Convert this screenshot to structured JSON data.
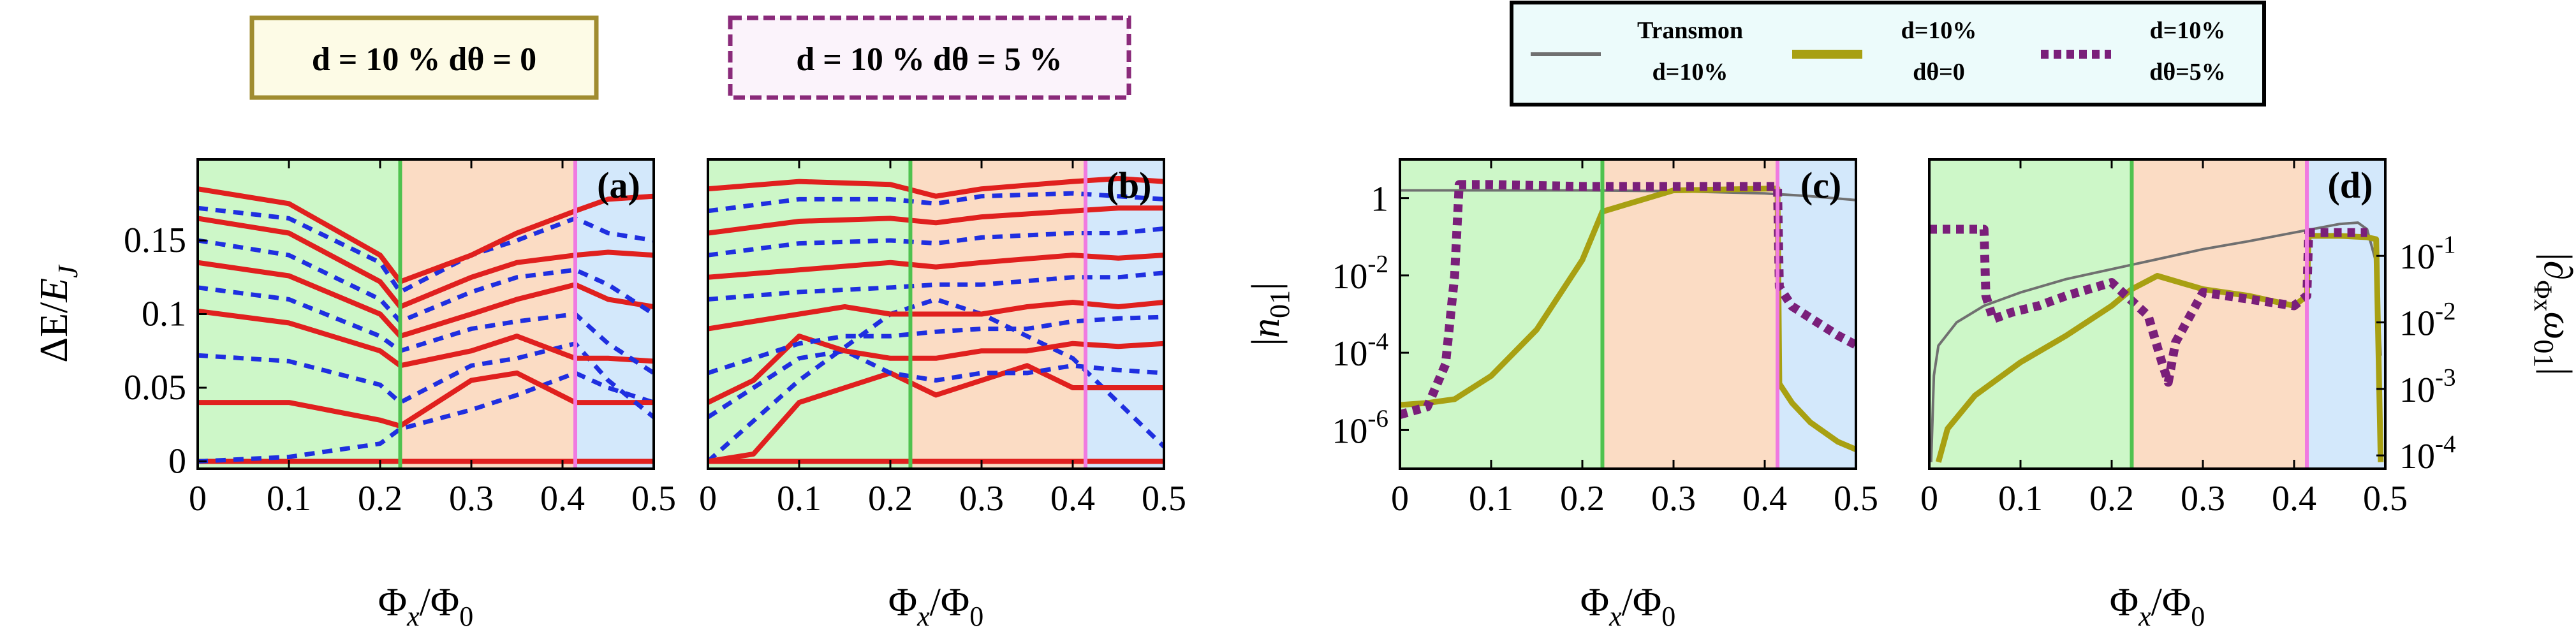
{
  "colors": {
    "red": "#e0201e",
    "blue": "#1f2fe0",
    "olive": "#a8a012",
    "purple": "#7a1f7a",
    "gray": "#707070",
    "region_green": "#cdf7c8",
    "region_orange": "#fbdcc4",
    "region_blue": "#d3e8fb",
    "green_line": "#4fc24f",
    "pink_line": "#f07ae0",
    "legend_bg": "#ecfbfb",
    "box_a_border": "#a08c30",
    "box_b_border": "#8a2a7a"
  },
  "boxes": [
    {
      "text": "d = 10 %    dθ = 0",
      "style": "solid"
    },
    {
      "text": "d = 10 %    dθ = 5 %",
      "style": "dashed"
    }
  ],
  "legend": {
    "entries": [
      {
        "line1": "Transmon",
        "line2": "d=10%",
        "style": "gray-solid"
      },
      {
        "line1": "d=10%",
        "line2": "dθ=0",
        "style": "olive-solid"
      },
      {
        "line1": "d=10%",
        "line2": "dθ=5%",
        "style": "purple-dotted"
      }
    ]
  },
  "chart_data": [
    {
      "panel": "(a)",
      "type": "line",
      "xlabel": "Φx/Φ0",
      "ylabel": "ΔE/EJ",
      "xlim": [
        0,
        0.5
      ],
      "ylim": [
        -0.005,
        0.205
      ],
      "xticks": [
        "0",
        "0.1",
        "0.2",
        "0.3",
        "0.4",
        "0.5"
      ],
      "yticks": [
        "0",
        "0.05",
        "0.1",
        "0.15"
      ],
      "regions": [
        {
          "from": 0,
          "to": 0.222,
          "color": "green"
        },
        {
          "from": 0.222,
          "to": 0.414,
          "color": "orange"
        },
        {
          "from": 0.414,
          "to": 0.5,
          "color": "blue"
        }
      ],
      "vlines": [
        0.222,
        0.414
      ],
      "series": [
        {
          "name": "red 0",
          "color": "red",
          "dash": false,
          "x": [
            0,
            0.5
          ],
          "y": [
            0.0,
            0.0
          ]
        },
        {
          "name": "blue 1",
          "color": "blue",
          "dash": true,
          "x": [
            0,
            0.1,
            0.2,
            0.222,
            0.3,
            0.35,
            0.414,
            0.45,
            0.5
          ],
          "y": [
            0.0,
            0.003,
            0.012,
            0.022,
            0.035,
            0.045,
            0.06,
            0.05,
            0.04
          ]
        },
        {
          "name": "red 1",
          "color": "red",
          "dash": false,
          "x": [
            0,
            0.1,
            0.2,
            0.222,
            0.3,
            0.35,
            0.414,
            0.45,
            0.5
          ],
          "y": [
            0.04,
            0.04,
            0.028,
            0.024,
            0.055,
            0.06,
            0.04,
            0.04,
            0.04
          ]
        },
        {
          "name": "blue 2",
          "color": "blue",
          "dash": true,
          "x": [
            0,
            0.1,
            0.2,
            0.222,
            0.3,
            0.35,
            0.414,
            0.45,
            0.5
          ],
          "y": [
            0.072,
            0.068,
            0.052,
            0.04,
            0.065,
            0.07,
            0.08,
            0.055,
            0.03
          ]
        },
        {
          "name": "red 2",
          "color": "red",
          "dash": false,
          "x": [
            0,
            0.1,
            0.2,
            0.222,
            0.3,
            0.35,
            0.414,
            0.45,
            0.5
          ],
          "y": [
            0.102,
            0.094,
            0.075,
            0.065,
            0.075,
            0.085,
            0.07,
            0.07,
            0.068
          ]
        },
        {
          "name": "blue 3",
          "color": "blue",
          "dash": true,
          "x": [
            0,
            0.1,
            0.2,
            0.222,
            0.3,
            0.35,
            0.414,
            0.45,
            0.5
          ],
          "y": [
            0.118,
            0.11,
            0.085,
            0.075,
            0.09,
            0.095,
            0.1,
            0.08,
            0.06
          ]
        },
        {
          "name": "red 3",
          "color": "red",
          "dash": false,
          "x": [
            0,
            0.1,
            0.2,
            0.222,
            0.3,
            0.35,
            0.414,
            0.45,
            0.5
          ],
          "y": [
            0.135,
            0.126,
            0.1,
            0.085,
            0.1,
            0.11,
            0.12,
            0.11,
            0.105
          ]
        },
        {
          "name": "blue 4",
          "color": "blue",
          "dash": true,
          "x": [
            0,
            0.1,
            0.2,
            0.222,
            0.3,
            0.35,
            0.414,
            0.45,
            0.5
          ],
          "y": [
            0.15,
            0.14,
            0.11,
            0.095,
            0.115,
            0.125,
            0.13,
            0.12,
            0.1
          ]
        },
        {
          "name": "red 4",
          "color": "red",
          "dash": false,
          "x": [
            0,
            0.1,
            0.2,
            0.222,
            0.3,
            0.35,
            0.414,
            0.45,
            0.5
          ],
          "y": [
            0.165,
            0.155,
            0.122,
            0.105,
            0.125,
            0.135,
            0.14,
            0.142,
            0.14
          ]
        },
        {
          "name": "blue 5",
          "color": "blue",
          "dash": true,
          "x": [
            0,
            0.1,
            0.2,
            0.222,
            0.3,
            0.35,
            0.414,
            0.45,
            0.5
          ],
          "y": [
            0.172,
            0.165,
            0.135,
            0.115,
            0.14,
            0.15,
            0.165,
            0.155,
            0.15
          ]
        },
        {
          "name": "red 5",
          "color": "red",
          "dash": false,
          "x": [
            0,
            0.1,
            0.2,
            0.222,
            0.3,
            0.35,
            0.414,
            0.45,
            0.5
          ],
          "y": [
            0.185,
            0.175,
            0.14,
            0.122,
            0.14,
            0.155,
            0.17,
            0.178,
            0.18
          ]
        }
      ]
    },
    {
      "panel": "(b)",
      "type": "line",
      "xlabel": "Φx/Φ0",
      "ylabel": "",
      "xlim": [
        0,
        0.5
      ],
      "ylim": [
        -0.005,
        0.205
      ],
      "xticks": [
        "0",
        "0.1",
        "0.2",
        "0.3",
        "0.4",
        "0.5"
      ],
      "yticks": [],
      "regions": [
        {
          "from": 0,
          "to": 0.222,
          "color": "green"
        },
        {
          "from": 0.222,
          "to": 0.414,
          "color": "orange"
        },
        {
          "from": 0.414,
          "to": 0.5,
          "color": "blue"
        }
      ],
      "vlines": [
        0.222,
        0.414
      ],
      "series": [
        {
          "name": "red 0",
          "color": "red",
          "dash": false,
          "x": [
            0,
            0.5
          ],
          "y": [
            0.0,
            0.0
          ]
        },
        {
          "name": "blue 1",
          "color": "blue",
          "dash": true,
          "x": [
            0,
            0.1,
            0.2,
            0.25,
            0.3,
            0.4,
            0.45,
            0.5
          ],
          "y": [
            0.0,
            0.055,
            0.1,
            0.11,
            0.1,
            0.07,
            0.04,
            0.01
          ]
        },
        {
          "name": "red 1",
          "color": "red",
          "dash": false,
          "x": [
            0,
            0.05,
            0.1,
            0.15,
            0.2,
            0.25,
            0.3,
            0.35,
            0.4,
            0.45,
            0.5
          ],
          "y": [
            0.0,
            0.005,
            0.04,
            0.05,
            0.06,
            0.045,
            0.055,
            0.065,
            0.05,
            0.05,
            0.05
          ]
        },
        {
          "name": "blue 2",
          "color": "blue",
          "dash": true,
          "x": [
            0,
            0.05,
            0.1,
            0.15,
            0.2,
            0.25,
            0.3,
            0.35,
            0.4,
            0.45,
            0.5
          ],
          "y": [
            0.03,
            0.05,
            0.07,
            0.075,
            0.06,
            0.055,
            0.06,
            0.06,
            0.065,
            0.062,
            0.06
          ]
        },
        {
          "name": "red 2",
          "color": "red",
          "dash": false,
          "x": [
            0,
            0.05,
            0.1,
            0.15,
            0.2,
            0.25,
            0.3,
            0.35,
            0.4,
            0.45,
            0.5
          ],
          "y": [
            0.04,
            0.055,
            0.085,
            0.075,
            0.07,
            0.07,
            0.075,
            0.075,
            0.08,
            0.078,
            0.08
          ]
        },
        {
          "name": "blue 3",
          "color": "blue",
          "dash": true,
          "x": [
            0,
            0.05,
            0.1,
            0.15,
            0.2,
            0.25,
            0.3,
            0.35,
            0.4,
            0.45,
            0.5
          ],
          "y": [
            0.06,
            0.07,
            0.08,
            0.085,
            0.085,
            0.088,
            0.09,
            0.09,
            0.095,
            0.097,
            0.098
          ]
        },
        {
          "name": "red 3",
          "color": "red",
          "dash": false,
          "x": [
            0,
            0.05,
            0.1,
            0.15,
            0.2,
            0.25,
            0.3,
            0.35,
            0.4,
            0.45,
            0.5
          ],
          "y": [
            0.09,
            0.095,
            0.1,
            0.105,
            0.1,
            0.1,
            0.1,
            0.105,
            0.108,
            0.105,
            0.108
          ]
        },
        {
          "name": "blue 4",
          "color": "blue",
          "dash": true,
          "x": [
            0,
            0.1,
            0.2,
            0.25,
            0.3,
            0.4,
            0.45,
            0.5
          ],
          "y": [
            0.11,
            0.115,
            0.118,
            0.12,
            0.12,
            0.125,
            0.125,
            0.128
          ]
        },
        {
          "name": "red 4",
          "color": "red",
          "dash": false,
          "x": [
            0,
            0.1,
            0.2,
            0.25,
            0.3,
            0.4,
            0.45,
            0.5
          ],
          "y": [
            0.125,
            0.13,
            0.135,
            0.132,
            0.135,
            0.14,
            0.138,
            0.14
          ]
        },
        {
          "name": "blue 5",
          "color": "blue",
          "dash": true,
          "x": [
            0,
            0.1,
            0.2,
            0.25,
            0.3,
            0.4,
            0.45,
            0.5
          ],
          "y": [
            0.14,
            0.148,
            0.15,
            0.148,
            0.152,
            0.155,
            0.155,
            0.158
          ]
        },
        {
          "name": "red 5",
          "color": "red",
          "dash": false,
          "x": [
            0,
            0.1,
            0.2,
            0.25,
            0.3,
            0.4,
            0.45,
            0.5
          ],
          "y": [
            0.155,
            0.163,
            0.165,
            0.162,
            0.166,
            0.17,
            0.172,
            0.172
          ]
        },
        {
          "name": "blue 6",
          "color": "blue",
          "dash": true,
          "x": [
            0,
            0.1,
            0.2,
            0.25,
            0.3,
            0.4,
            0.45,
            0.5
          ],
          "y": [
            0.17,
            0.178,
            0.178,
            0.175,
            0.18,
            0.182,
            0.18,
            0.178
          ]
        },
        {
          "name": "red 6",
          "color": "red",
          "dash": false,
          "x": [
            0,
            0.1,
            0.2,
            0.25,
            0.3,
            0.4,
            0.45,
            0.5
          ],
          "y": [
            0.185,
            0.19,
            0.188,
            0.18,
            0.185,
            0.19,
            0.192,
            0.19
          ]
        }
      ]
    },
    {
      "panel": "(c)",
      "type": "line",
      "scale": "log",
      "xlabel": "Φx/Φ0",
      "ylabel": "|n01|",
      "xlim": [
        0,
        0.5
      ],
      "ylim": [
        -7,
        1
      ],
      "xticks": [
        "0",
        "0.1",
        "0.2",
        "0.3",
        "0.4",
        "0.5"
      ],
      "yticks": [
        {
          "exp": 0,
          "label": "1"
        },
        {
          "exp": -2,
          "label": "10",
          "sup": "-2"
        },
        {
          "exp": -4,
          "label": "10",
          "sup": "-4"
        },
        {
          "exp": -6,
          "label": "10",
          "sup": "-6"
        }
      ],
      "regions": [
        {
          "from": 0,
          "to": 0.222,
          "color": "green"
        },
        {
          "from": 0.222,
          "to": 0.414,
          "color": "orange"
        },
        {
          "from": 0.414,
          "to": 0.5,
          "color": "blue"
        }
      ],
      "vlines": [
        0.222,
        0.414
      ],
      "series": [
        {
          "name": "Transmon",
          "color": "gray",
          "dash": false,
          "x": [
            0,
            0.1,
            0.2,
            0.3,
            0.4,
            0.45,
            0.5
          ],
          "y": [
            0.2,
            0.2,
            0.2,
            0.18,
            0.12,
            0.05,
            -0.05
          ]
        },
        {
          "name": "d=10% dθ=0",
          "color": "olive",
          "dash": false,
          "x": [
            0,
            0.03,
            0.06,
            0.1,
            0.15,
            0.2,
            0.222,
            0.3,
            0.414,
            0.416,
            0.43,
            0.45,
            0.48,
            0.5
          ],
          "y": [
            -5.35,
            -5.3,
            -5.2,
            -4.6,
            -3.4,
            -1.6,
            -0.35,
            0.2,
            0.25,
            -4.8,
            -5.3,
            -5.8,
            -6.3,
            -6.5
          ]
        },
        {
          "name": "d=10% dθ=5%",
          "color": "purple",
          "dash": true,
          "x": [
            0,
            0.03,
            0.05,
            0.06,
            0.065,
            0.1,
            0.2,
            0.3,
            0.414,
            0.416,
            0.43,
            0.45,
            0.48,
            0.5
          ],
          "y": [
            -5.6,
            -5.4,
            -4.3,
            -2.0,
            0.35,
            0.35,
            0.3,
            0.3,
            0.3,
            -2.3,
            -2.8,
            -3.1,
            -3.55,
            -3.8
          ]
        }
      ]
    },
    {
      "panel": "(d)",
      "type": "line",
      "scale": "log",
      "xlabel": "Φx/Φ0",
      "ylabel": "|∂Φx ω01|",
      "xlim": [
        0,
        0.5
      ],
      "ylim": [
        -4.2,
        0.45
      ],
      "xticks": [
        "0",
        "0.1",
        "0.2",
        "0.3",
        "0.4",
        "0.5"
      ],
      "yticks_right": [
        {
          "exp": -1,
          "label": "10",
          "sup": "-1"
        },
        {
          "exp": -2,
          "label": "10",
          "sup": "-2"
        },
        {
          "exp": -3,
          "label": "10",
          "sup": "-3"
        },
        {
          "exp": -4,
          "label": "10",
          "sup": "-4"
        }
      ],
      "regions": [
        {
          "from": 0,
          "to": 0.222,
          "color": "green"
        },
        {
          "from": 0.222,
          "to": 0.414,
          "color": "orange"
        },
        {
          "from": 0.414,
          "to": 0.5,
          "color": "blue"
        }
      ],
      "vlines": [
        0.222,
        0.414
      ],
      "series": [
        {
          "name": "Transmon",
          "color": "gray",
          "dash": false,
          "x": [
            0.002,
            0.005,
            0.01,
            0.03,
            0.06,
            0.1,
            0.15,
            0.2,
            0.25,
            0.3,
            0.35,
            0.4,
            0.45,
            0.47,
            0.48,
            0.49,
            0.495
          ],
          "y": [
            -4.1,
            -2.8,
            -2.35,
            -2.0,
            -1.75,
            -1.55,
            -1.35,
            -1.2,
            -1.05,
            -0.9,
            -0.78,
            -0.65,
            -0.52,
            -0.5,
            -0.6,
            -1.1,
            -2.5
          ]
        },
        {
          "name": "d=10% dθ=0",
          "color": "olive",
          "dash": false,
          "x": [
            0.01,
            0.02,
            0.05,
            0.1,
            0.15,
            0.2,
            0.222,
            0.25,
            0.3,
            0.35,
            0.4,
            0.414,
            0.416,
            0.45,
            0.48,
            0.49,
            0.495
          ],
          "y": [
            -4.1,
            -3.6,
            -3.1,
            -2.6,
            -2.2,
            -1.75,
            -1.5,
            -1.3,
            -1.5,
            -1.6,
            -1.75,
            -1.6,
            -0.7,
            -0.7,
            -0.72,
            -0.75,
            -4.1
          ]
        },
        {
          "name": "d=10% dθ=5%",
          "color": "purple",
          "dash": true,
          "x": [
            0,
            0.06,
            0.062,
            0.07,
            0.09,
            0.12,
            0.15,
            0.2,
            0.24,
            0.255,
            0.262,
            0.27,
            0.3,
            0.35,
            0.4,
            0.414,
            0.416,
            0.46,
            0.48
          ],
          "y": [
            -0.6,
            -0.6,
            -1.6,
            -1.95,
            -1.85,
            -1.75,
            -1.6,
            -1.4,
            -1.9,
            -2.6,
            -2.9,
            -2.3,
            -1.55,
            -1.65,
            -1.75,
            -1.6,
            -0.65,
            -0.65,
            -0.65
          ]
        }
      ]
    }
  ]
}
